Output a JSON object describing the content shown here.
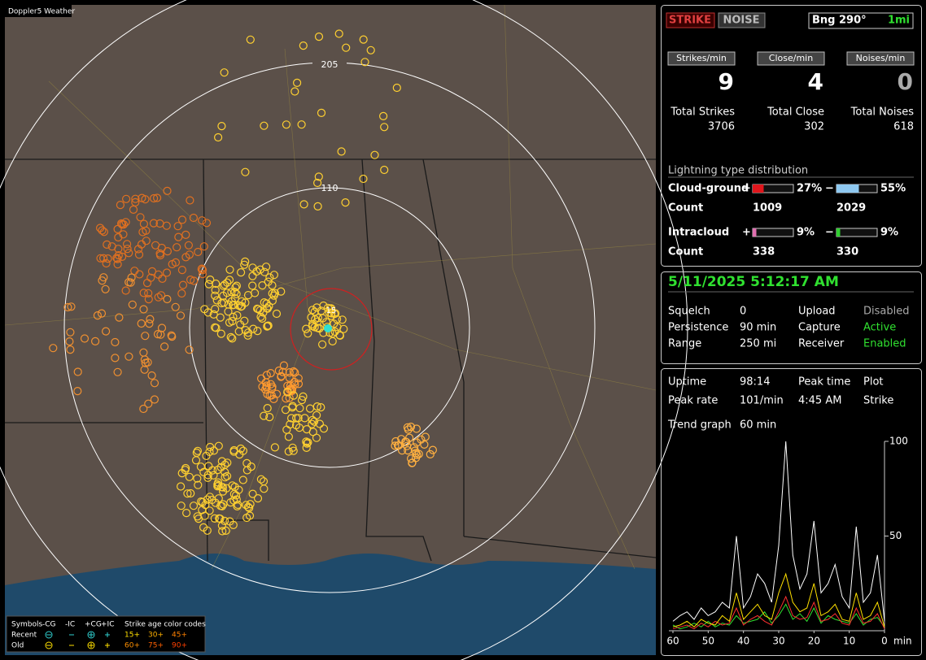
{
  "map": {
    "title": "Doppler5 Weather",
    "ring_labels": [
      "205",
      "110",
      "15"
    ],
    "legend": {
      "symbols": "Symbols",
      "types": [
        "-CG",
        "-IC",
        "+CG",
        "+IC"
      ],
      "age_title": "Strike age color codes",
      "rows": [
        "Recent",
        "Old"
      ],
      "ages": [
        [
          "15+",
          "30+",
          "45+"
        ],
        [
          "60+",
          "75+",
          "90+"
        ]
      ]
    }
  },
  "header": {
    "strike": "STRIKE",
    "noise": "NOISE",
    "bearing": "Bng 290°",
    "distance": "1mi"
  },
  "rates": {
    "labels": [
      "Strikes/min",
      "Close/min",
      "Noises/min"
    ],
    "values": [
      9,
      4,
      0
    ]
  },
  "totals": {
    "labels": [
      "Total Strikes",
      "Total Close",
      "Total Noises"
    ],
    "values": [
      3706,
      302,
      618
    ]
  },
  "distribution": {
    "title": "Lightning type distribution",
    "count_label": "Count",
    "rows": [
      {
        "name": "Cloud-ground",
        "positive": {
          "sign": "+",
          "percent": {
            "value": 27,
            "label": "27%"
          },
          "count": 1009,
          "color": "#e0161c"
        },
        "negative": {
          "sign": "−",
          "percent": {
            "value": 55,
            "label": "55%"
          },
          "count": 2029,
          "color": "#8ec8f0"
        }
      },
      {
        "name": "Intracloud",
        "positive": {
          "sign": "+",
          "percent": {
            "value": 9,
            "label": "9%"
          },
          "count": 338,
          "color": "#e070b0"
        },
        "negative": {
          "sign": "−",
          "percent": {
            "value": 9,
            "label": "9%"
          },
          "count": 330,
          "color": "#30d030"
        }
      }
    ]
  },
  "status": {
    "datetime": "5/11/2025 5:12:17 AM",
    "rows": [
      [
        "Squelch",
        "0",
        "Upload",
        "Disabled"
      ],
      [
        "Persistence",
        "90 min",
        "Capture",
        "Active"
      ],
      [
        "Range",
        "250 mi",
        "Receiver",
        "Enabled"
      ]
    ]
  },
  "stats": {
    "rows": [
      [
        "Uptime",
        "98:14",
        "Peak time",
        "Plot"
      ],
      [
        "Peak rate",
        "101/min",
        "4:45 AM",
        "Strike"
      ]
    ],
    "trend_label": "Trend graph",
    "trend_window": "60 min"
  },
  "chart_data": {
    "type": "line",
    "x": [
      60,
      58,
      56,
      54,
      52,
      50,
      48,
      46,
      44,
      42,
      40,
      38,
      36,
      34,
      32,
      30,
      28,
      26,
      24,
      22,
      20,
      18,
      16,
      14,
      12,
      10,
      8,
      6,
      4,
      2,
      0
    ],
    "xlim": [
      60,
      0
    ],
    "xticks": [
      60,
      50,
      40,
      30,
      20,
      10,
      0
    ],
    "xlabel": "min",
    "ylim": [
      0,
      100
    ],
    "yticks": [
      50,
      100
    ],
    "series": [
      {
        "color": "#ffffff",
        "values": [
          5,
          8,
          10,
          6,
          12,
          8,
          10,
          15,
          12,
          50,
          12,
          18,
          30,
          25,
          15,
          45,
          100,
          40,
          22,
          30,
          58,
          20,
          25,
          35,
          18,
          12,
          55,
          15,
          20,
          40,
          5
        ]
      },
      {
        "color": "#ffe000",
        "values": [
          2,
          3,
          5,
          2,
          6,
          4,
          3,
          8,
          5,
          20,
          6,
          10,
          14,
          8,
          6,
          20,
          30,
          15,
          10,
          12,
          25,
          8,
          10,
          14,
          6,
          5,
          20,
          6,
          8,
          15,
          2
        ]
      },
      {
        "color": "#ff3030",
        "values": [
          1,
          2,
          3,
          1,
          4,
          2,
          5,
          3,
          4,
          12,
          3,
          6,
          8,
          5,
          3,
          10,
          18,
          8,
          6,
          7,
          15,
          5,
          6,
          9,
          4,
          3,
          12,
          4,
          5,
          9,
          1
        ]
      },
      {
        "color": "#30e030",
        "values": [
          3,
          1,
          2,
          4,
          2,
          5,
          2,
          4,
          3,
          8,
          4,
          5,
          6,
          10,
          4,
          8,
          14,
          6,
          9,
          5,
          12,
          4,
          8,
          6,
          5,
          4,
          9,
          3,
          6,
          7,
          2
        ]
      }
    ]
  }
}
